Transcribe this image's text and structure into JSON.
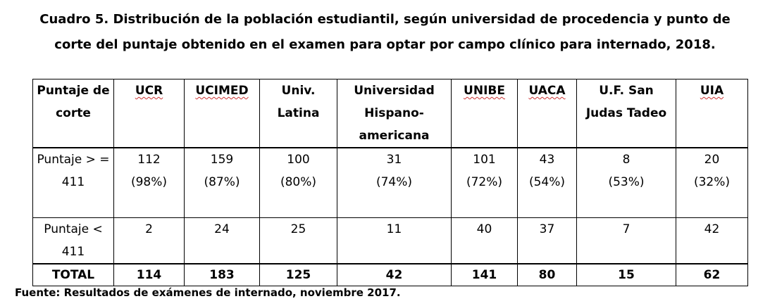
{
  "title": {
    "line1": "Cuadro 5. Distribución de la población estudiantil, según universidad de procedencia  y punto de",
    "line2": "corte del puntaje  obtenido en el  examen para optar por campo clínico para internado, 2018."
  },
  "table": {
    "headers": [
      "Puntaje de corte",
      "UCR",
      "UCIMED",
      "Univ. Latina",
      "Universidad Hispano-americana",
      "UNIBE",
      "UACA",
      "U.F. San Judas Tadeo",
      "UIA"
    ],
    "rows": [
      {
        "label": "Puntaje > = 411",
        "cells": [
          {
            "count": "112",
            "pct": "(98%)"
          },
          {
            "count": "159",
            "pct": "(87%)"
          },
          {
            "count": "100",
            "pct": "(80%)"
          },
          {
            "count": "31",
            "pct": "(74%)"
          },
          {
            "count": "101",
            "pct": "(72%)"
          },
          {
            "count": "43",
            "pct": "(54%)"
          },
          {
            "count": "8",
            "pct": "(53%)"
          },
          {
            "count": "20",
            "pct": "(32%)"
          }
        ]
      },
      {
        "label": "Puntaje < 411",
        "cells": [
          "2",
          "24",
          "25",
          "11",
          "40",
          "37",
          "7",
          "42"
        ]
      },
      {
        "label": "TOTAL",
        "cells": [
          "114",
          "183",
          "125",
          "42",
          "141",
          "80",
          "15",
          "62"
        ]
      }
    ]
  },
  "source": "Fuente: Resultados de exámenes de internado, noviembre 2017."
}
